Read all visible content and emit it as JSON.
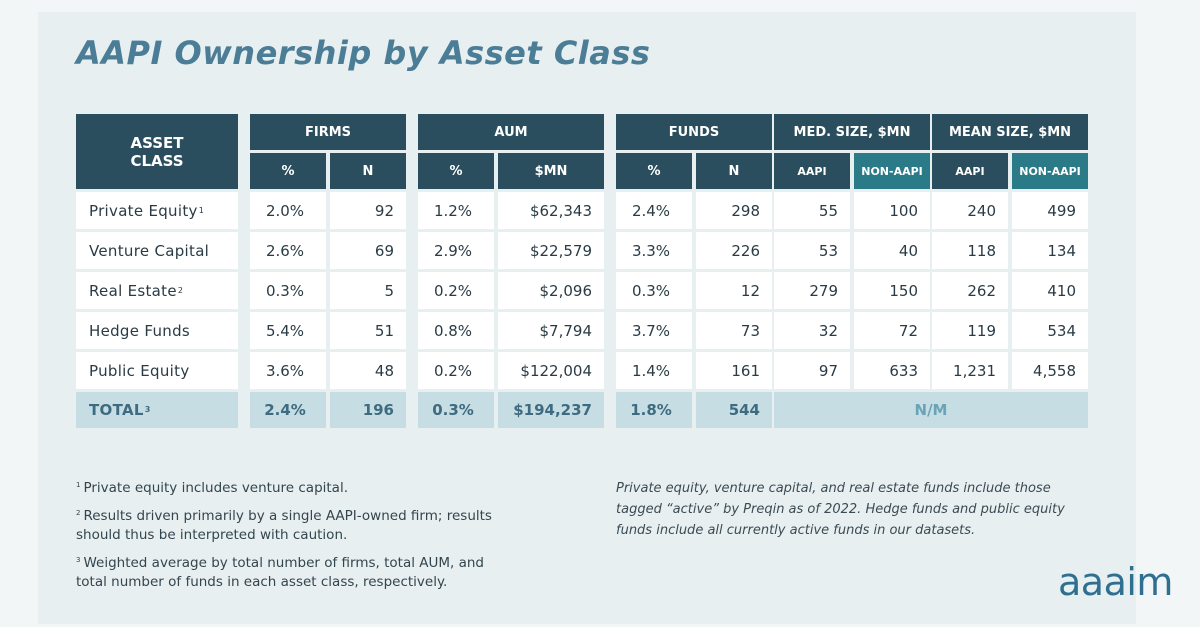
{
  "title": "AAPI Ownership by Asset Class",
  "headers": {
    "asset_class": "ASSET CLASS",
    "firms": "FIRMS",
    "aum": "AUM",
    "funds": "FUNDS",
    "med_size": "MED. SIZE, $MN",
    "mean_size": "MEAN SIZE, $MN",
    "pct": "%",
    "n": "N",
    "mn": "$MN",
    "aapi": "AAPI",
    "non_aapi": "NON-AAPI"
  },
  "rows": [
    {
      "label": "Private Equity",
      "sup": "1",
      "firms_pct": "2.0%",
      "firms_n": "92",
      "aum_pct": "1.2%",
      "aum_mn": "$62,343",
      "funds_pct": "2.4%",
      "funds_n": "298",
      "med_aapi": "55",
      "med_non": "100",
      "mean_aapi": "240",
      "mean_non": "499"
    },
    {
      "label": "Venture Capital",
      "sup": "",
      "firms_pct": "2.6%",
      "firms_n": "69",
      "aum_pct": "2.9%",
      "aum_mn": "$22,579",
      "funds_pct": "3.3%",
      "funds_n": "226",
      "med_aapi": "53",
      "med_non": "40",
      "mean_aapi": "118",
      "mean_non": "134"
    },
    {
      "label": "Real Estate",
      "sup": "2",
      "firms_pct": "0.3%",
      "firms_n": "5",
      "aum_pct": "0.2%",
      "aum_mn": "$2,096",
      "funds_pct": "0.3%",
      "funds_n": "12",
      "med_aapi": "279",
      "med_non": "150",
      "mean_aapi": "262",
      "mean_non": "410"
    },
    {
      "label": "Hedge Funds",
      "sup": "",
      "firms_pct": "5.4%",
      "firms_n": "51",
      "aum_pct": "0.8%",
      "aum_mn": "$7,794",
      "funds_pct": "3.7%",
      "funds_n": "73",
      "med_aapi": "32",
      "med_non": "72",
      "mean_aapi": "119",
      "mean_non": "534"
    },
    {
      "label": "Public Equity",
      "sup": "",
      "firms_pct": "3.6%",
      "firms_n": "48",
      "aum_pct": "0.2%",
      "aum_mn": "$122,004",
      "funds_pct": "1.4%",
      "funds_n": "161",
      "med_aapi": "97",
      "med_non": "633",
      "mean_aapi": "1,231",
      "mean_non": "4,558"
    }
  ],
  "total": {
    "label": "TOTAL",
    "sup": "3",
    "firms_pct": "2.4%",
    "firms_n": "196",
    "aum_pct": "0.3%",
    "aum_mn": "$194,237",
    "funds_pct": "1.8%",
    "funds_n": "544",
    "size": "N/M"
  },
  "footnotes": [
    {
      "mark": "1",
      "text": "Private equity includes venture capital."
    },
    {
      "mark": "2",
      "text": "Results driven primarily by a single AAPI-owned firm; results should thus be interpreted with caution."
    },
    {
      "mark": "3",
      "text": "Weighted average by total number of firms, total AUM, and total number of funds in each asset class, respectively."
    }
  ],
  "note": "Private equity, venture capital, and real estate funds include those tagged “active” by Preqin as of 2022. Hedge funds and public equity funds include all currently active funds in our datasets.",
  "logo": "aaaim",
  "colors": {
    "header": "#2b4e5e",
    "subheader_accent": "#2a7a88",
    "total_row": "#c5dde3",
    "title": "#4b7d96"
  }
}
